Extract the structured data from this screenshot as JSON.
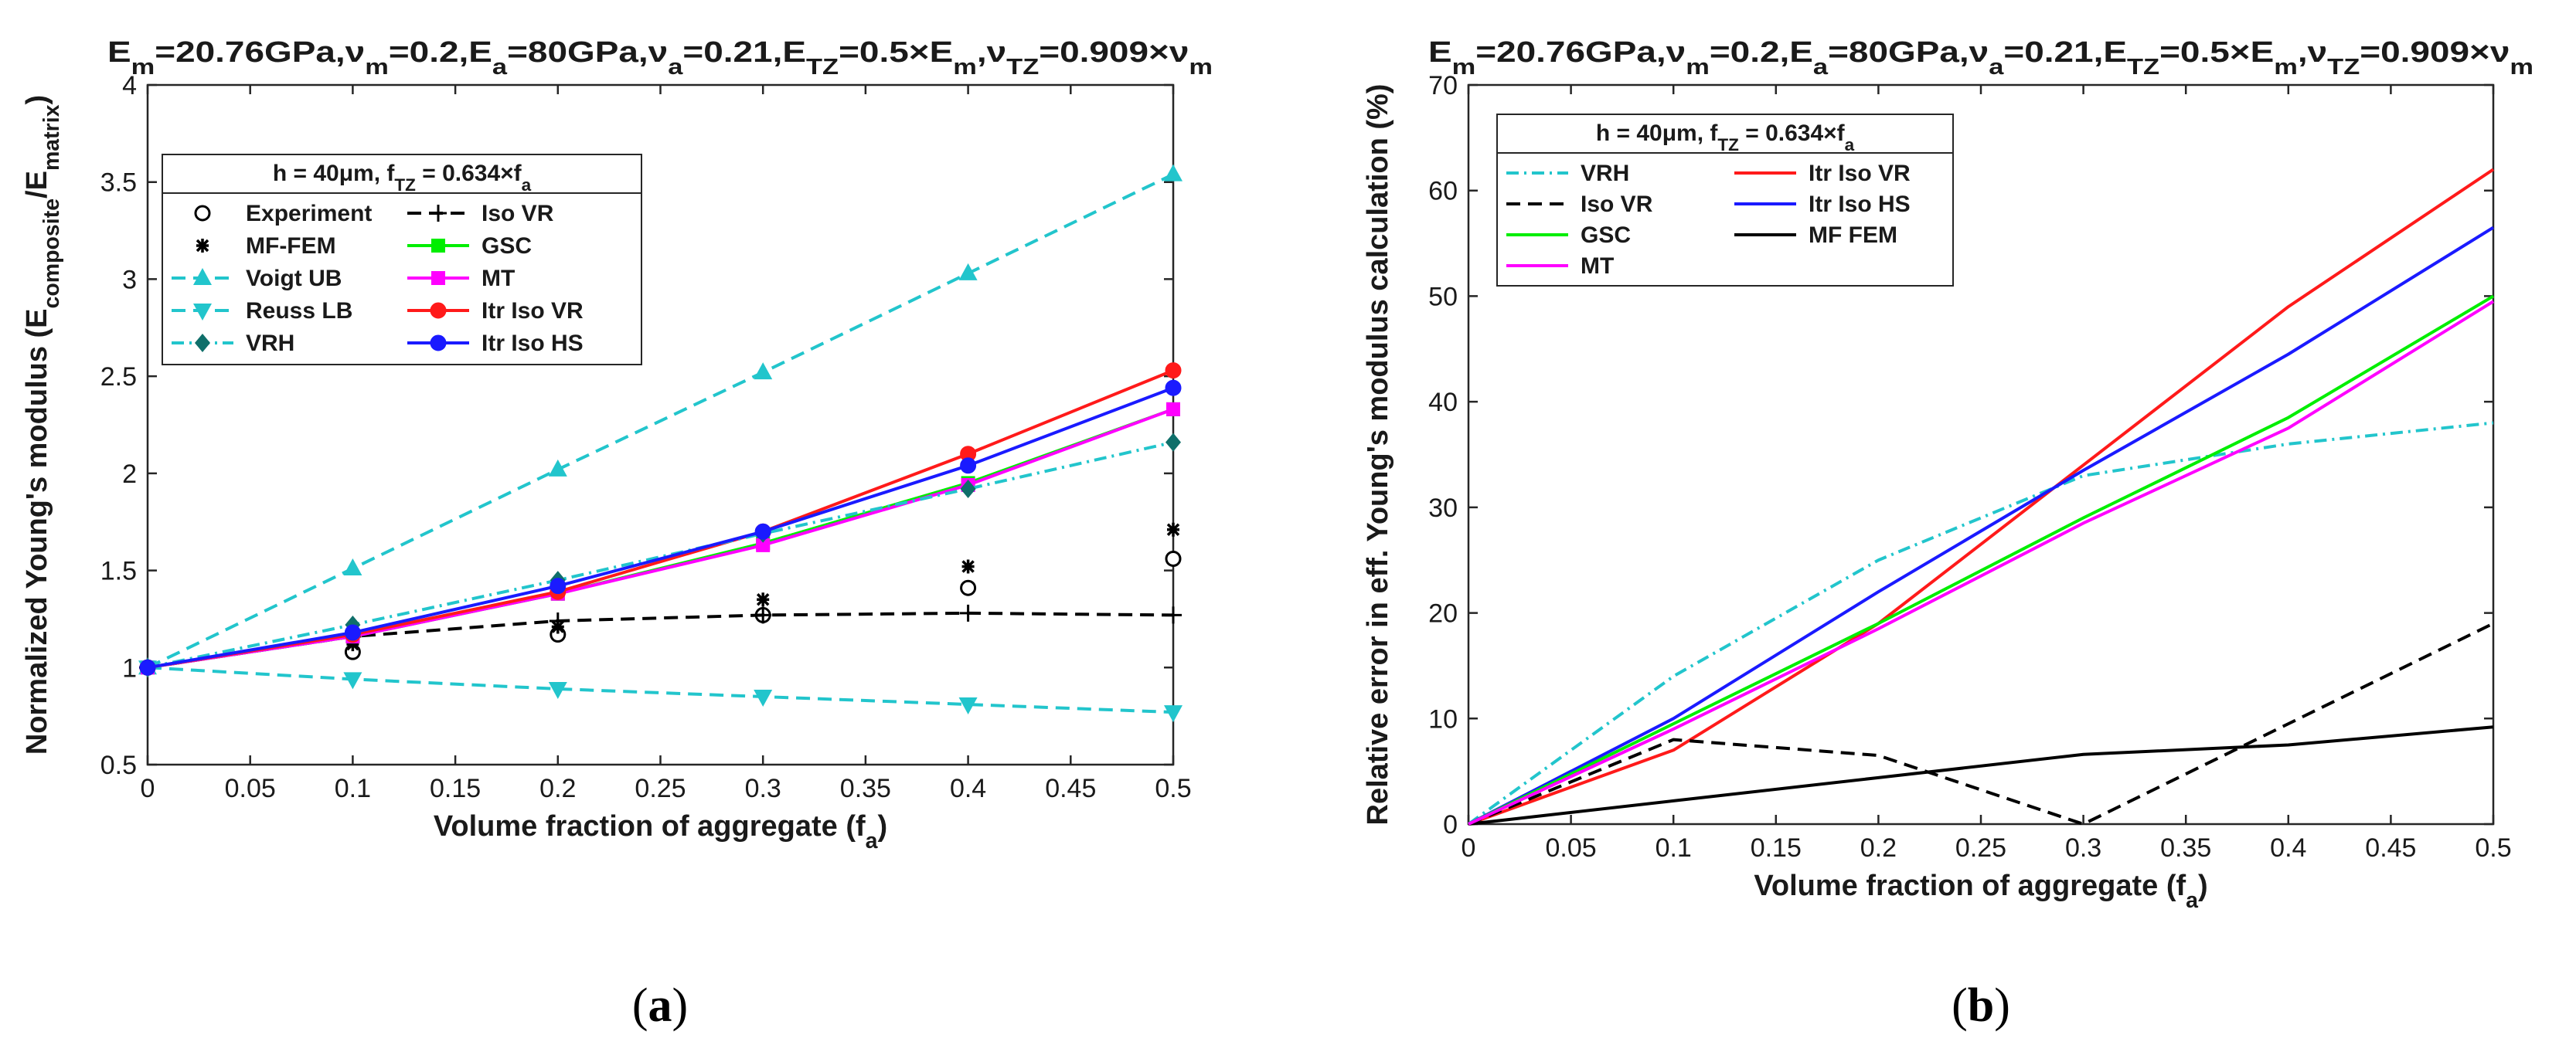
{
  "chart_data": [
    {
      "id": "a",
      "type": "line",
      "caption": [
        "(",
        "a",
        ")"
      ],
      "title": "E_m=20.76GPa,ν_m=0.2,E_a=80GPa,ν_a=0.21,E_TZ=0.5×E_m,ν_TZ=0.909×ν_m",
      "xlabel": "Volume fraction of aggregate (f_a)",
      "ylabel": "Normalized Young's modulus (E_composite/E_matrix)",
      "xlim": [
        0,
        0.5
      ],
      "ylim": [
        0.5,
        4
      ],
      "xticks": [
        0,
        0.05,
        0.1,
        0.15,
        0.2,
        0.25,
        0.3,
        0.35,
        0.4,
        0.45,
        0.5
      ],
      "xtick_labels": [
        "0",
        "0.05",
        "0.1",
        "0.15",
        "0.2",
        "0.25",
        "0.3",
        "0.35",
        "0.4",
        "0.45",
        "0.5"
      ],
      "yticks": [
        0.5,
        1,
        1.5,
        2,
        2.5,
        3,
        3.5,
        4
      ],
      "ytick_labels": [
        "0.5",
        "1",
        "1.5",
        "2",
        "2.5",
        "3",
        "3.5",
        "4"
      ],
      "legend_title": "h = 40μm,   f_TZ = 0.634×f_a",
      "legend_position": "top-left",
      "legend_columns": 2,
      "series": [
        {
          "name": "Experiment",
          "color": "#000000",
          "line": "none",
          "marker": "circle-open",
          "x": [
            0,
            0.1,
            0.2,
            0.3,
            0.4,
            0.5
          ],
          "values": [
            1.0,
            1.08,
            1.17,
            1.27,
            1.41,
            1.56
          ]
        },
        {
          "name": "Iso VR",
          "color": "#000000",
          "line": "dashed",
          "marker": "plus",
          "x": [
            0,
            0.1,
            0.2,
            0.3,
            0.4,
            0.5
          ],
          "values": [
            1.0,
            1.16,
            1.24,
            1.27,
            1.28,
            1.27
          ]
        },
        {
          "name": "MF-FEM",
          "color": "#000000",
          "line": "none",
          "marker": "asterisk",
          "x": [
            0,
            0.1,
            0.2,
            0.3,
            0.4,
            0.5
          ],
          "values": [
            1.0,
            1.12,
            1.21,
            1.35,
            1.52,
            1.71
          ]
        },
        {
          "name": "GSC",
          "color": "#00ee00",
          "line": "solid",
          "marker": "square",
          "x": [
            0,
            0.1,
            0.2,
            0.3,
            0.4,
            0.5
          ],
          "values": [
            1.0,
            1.16,
            1.38,
            1.64,
            1.95,
            2.33
          ]
        },
        {
          "name": "Voigt UB",
          "color": "#22c5cc",
          "line": "dashed",
          "marker": "triangle-up",
          "x": [
            0,
            0.1,
            0.2,
            0.3,
            0.4,
            0.5
          ],
          "values": [
            1.0,
            1.51,
            2.02,
            2.52,
            3.03,
            3.54
          ]
        },
        {
          "name": "MT",
          "color": "#ff00ff",
          "line": "solid",
          "marker": "square",
          "x": [
            0,
            0.1,
            0.2,
            0.3,
            0.4,
            0.5
          ],
          "values": [
            1.0,
            1.16,
            1.38,
            1.63,
            1.94,
            2.33
          ]
        },
        {
          "name": "Reuss LB",
          "color": "#22c5cc",
          "line": "dashed",
          "marker": "triangle-down",
          "x": [
            0,
            0.1,
            0.2,
            0.3,
            0.4,
            0.5
          ],
          "values": [
            1.0,
            0.94,
            0.89,
            0.85,
            0.81,
            0.77
          ]
        },
        {
          "name": "Itr Iso VR",
          "color": "#ff1a1a",
          "line": "solid",
          "marker": "circle-filled",
          "x": [
            0,
            0.1,
            0.2,
            0.3,
            0.4,
            0.5
          ],
          "values": [
            1.0,
            1.17,
            1.39,
            1.7,
            2.1,
            2.53
          ]
        },
        {
          "name": "VRH",
          "color": "#22c5cc",
          "line": "dashdot",
          "marker": "diamond",
          "marker_color": "#0f6f6a",
          "x": [
            0,
            0.1,
            0.2,
            0.3,
            0.4,
            0.5
          ],
          "values": [
            1.0,
            1.22,
            1.45,
            1.69,
            1.92,
            2.16
          ]
        },
        {
          "name": "Itr Iso HS",
          "color": "#1a1aff",
          "line": "solid",
          "marker": "circle-filled",
          "x": [
            0,
            0.1,
            0.2,
            0.3,
            0.4,
            0.5
          ],
          "values": [
            1.0,
            1.18,
            1.42,
            1.7,
            2.04,
            2.44
          ]
        }
      ]
    },
    {
      "id": "b",
      "type": "line",
      "caption": [
        "(",
        "b",
        ")"
      ],
      "title": "E_m=20.76GPa,ν_m=0.2,E_a=80GPa,ν_a=0.21,E_TZ=0.5×E_m,ν_TZ=0.909×ν_m",
      "xlabel": "Volume fraction of aggregate (f_a)",
      "ylabel": "Relative error in eff. Young's modulus calculation (%)",
      "xlim": [
        0,
        0.5
      ],
      "ylim": [
        0,
        70
      ],
      "xticks": [
        0,
        0.05,
        0.1,
        0.15,
        0.2,
        0.25,
        0.3,
        0.35,
        0.4,
        0.45,
        0.5
      ],
      "xtick_labels": [
        "0",
        "0.05",
        "0.1",
        "0.15",
        "0.2",
        "0.25",
        "0.3",
        "0.35",
        "0.4",
        "0.45",
        "0.5"
      ],
      "yticks": [
        0,
        10,
        20,
        30,
        40,
        50,
        60,
        70
      ],
      "ytick_labels": [
        "0",
        "10",
        "20",
        "30",
        "40",
        "50",
        "60",
        "70"
      ],
      "legend_title": "h = 40μm,   f_TZ = 0.634×f_a",
      "legend_position": "top-left",
      "legend_columns": 2,
      "series": [
        {
          "name": "VRH",
          "color": "#22c5cc",
          "line": "dashdot",
          "marker": "none",
          "x": [
            0,
            0.1,
            0.2,
            0.3,
            0.4,
            0.5
          ],
          "values": [
            0,
            14,
            25,
            33,
            36,
            38
          ]
        },
        {
          "name": "Itr Iso VR",
          "color": "#ff1a1a",
          "line": "solid",
          "marker": "none",
          "x": [
            0,
            0.1,
            0.2,
            0.3,
            0.4,
            0.5
          ],
          "values": [
            0,
            7,
            19,
            34,
            49,
            62
          ]
        },
        {
          "name": "Iso VR",
          "color": "#000000",
          "line": "dashed",
          "marker": "none",
          "x": [
            0,
            0.1,
            0.2,
            0.3,
            0.4,
            0.5
          ],
          "values": [
            0,
            8,
            6.5,
            0,
            9.5,
            19
          ]
        },
        {
          "name": "Itr Iso HS",
          "color": "#1a1aff",
          "line": "solid",
          "marker": "none",
          "x": [
            0,
            0.1,
            0.2,
            0.3,
            0.4,
            0.5
          ],
          "values": [
            0,
            10,
            22,
            33.5,
            44.5,
            56.5
          ]
        },
        {
          "name": "GSC",
          "color": "#00ee00",
          "line": "solid",
          "marker": "none",
          "x": [
            0,
            0.1,
            0.2,
            0.3,
            0.4,
            0.5
          ],
          "values": [
            0,
            9.5,
            19,
            29,
            38.5,
            50
          ]
        },
        {
          "name": "MF FEM",
          "color": "#000000",
          "line": "solid",
          "marker": "none",
          "x": [
            0,
            0.1,
            0.2,
            0.3,
            0.4,
            0.5
          ],
          "values": [
            0,
            2.2,
            4.4,
            6.6,
            7.5,
            9.2
          ]
        },
        {
          "name": "MT",
          "color": "#ff00ff",
          "line": "solid",
          "marker": "none",
          "x": [
            0,
            0.1,
            0.2,
            0.3,
            0.4,
            0.5
          ],
          "values": [
            0,
            9,
            18.5,
            28.5,
            37.5,
            49.5
          ]
        }
      ]
    }
  ]
}
